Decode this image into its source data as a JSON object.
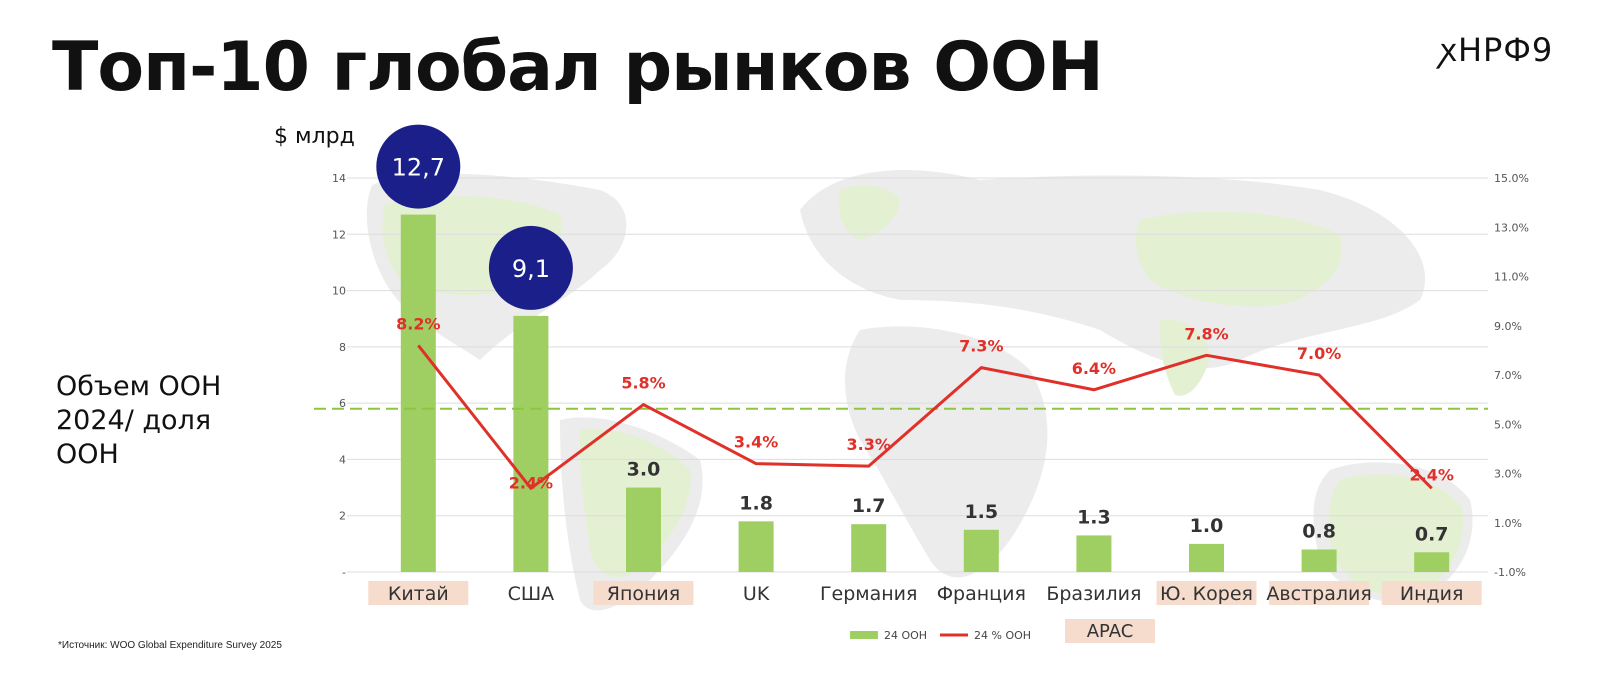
{
  "slide": {
    "title": "Топ-10 глобал рынков ООН",
    "logo": "ꭗНРФ9",
    "unit": "$ млрд",
    "side_label_lines": [
      "Объем ООН",
      "2024/ доля",
      "ООН"
    ],
    "source": "*Источник: WOO Global Expenditure Survey 2025",
    "region_tag": "APAC"
  },
  "chart_data": {
    "type": "bar",
    "categories": [
      "Китай",
      "США",
      "Япония",
      "UK",
      "Германия",
      "Франция",
      "Бразилия",
      "Ю. Корея",
      "Австралия",
      "Индия"
    ],
    "highlighted_categories": [
      "Китай",
      "Япония",
      "Ю. Корея",
      "Австралия",
      "Индия"
    ],
    "y_left_ticks": [
      "-",
      "2",
      "4",
      "6",
      "8",
      "10",
      "12",
      "14"
    ],
    "ylim": [
      0,
      14
    ],
    "y_right_ticks": [
      "-1.0%",
      "1.0%",
      "3.0%",
      "5.0%",
      "7.0%",
      "9.0%",
      "11.0%",
      "13.0%",
      "15.0%"
    ],
    "y2lim": [
      -1,
      15
    ],
    "reference_line_left": 5.8,
    "series": [
      {
        "name": "24 ООН",
        "type": "bar",
        "color": "#9fce63",
        "values": [
          12.7,
          9.1,
          3.0,
          1.8,
          1.7,
          1.5,
          1.3,
          1.0,
          0.8,
          0.7
        ],
        "labels": [
          "12,7",
          "9,1",
          "3.0",
          "1.8",
          "1.7",
          "1.5",
          "1.3",
          "1.0",
          "0.8",
          "0.7"
        ]
      },
      {
        "name": "24 % ООН",
        "type": "line",
        "axis": "right",
        "color": "#e0302a",
        "values": [
          8.2,
          2.4,
          5.8,
          3.4,
          3.3,
          7.3,
          6.4,
          7.8,
          7.0,
          2.4
        ],
        "labels": [
          "8.2%",
          "2.4%",
          "5.8%",
          "3.4%",
          "3.3%",
          "7.3%",
          "6.4%",
          "7.8%",
          "7.0%",
          "2.4%"
        ]
      }
    ],
    "bubble_color": "#1b1f8a",
    "highlight_color": "#f6dccd",
    "grid": true,
    "legend": "bottom-center"
  }
}
